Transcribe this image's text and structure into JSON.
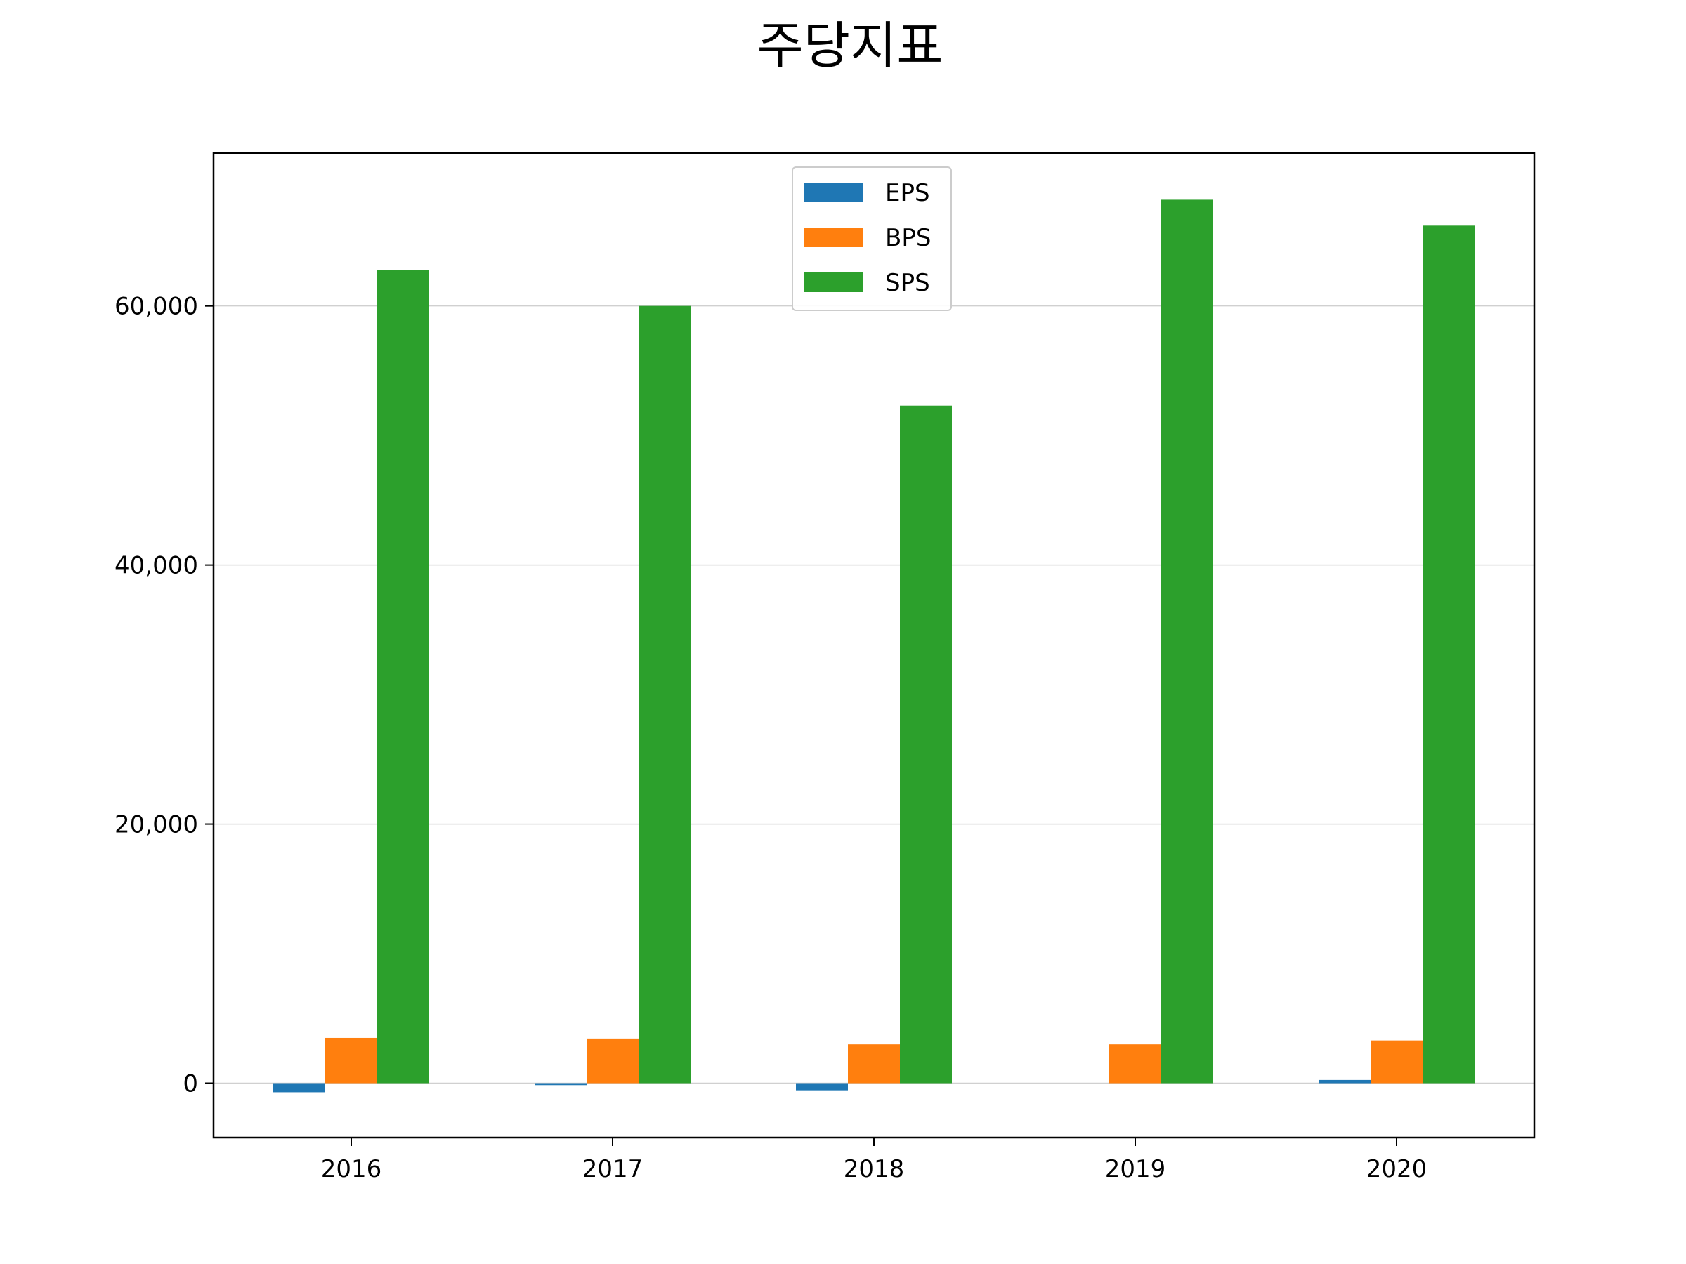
{
  "chart_data": {
    "type": "bar",
    "title": "주당지표",
    "xlabel": "",
    "ylabel": "",
    "categories": [
      "2016",
      "2017",
      "2018",
      "2019",
      "2020"
    ],
    "series": [
      {
        "name": "EPS",
        "color": "#1f77b4",
        "values": [
          -700,
          -150,
          -550,
          0,
          250
        ]
      },
      {
        "name": "BPS",
        "color": "#ff7f0e",
        "values": [
          3500,
          3450,
          3000,
          3000,
          3300
        ]
      },
      {
        "name": "SPS",
        "color": "#2ca02c",
        "values": [
          62800,
          60000,
          52300,
          68200,
          66200
        ]
      }
    ],
    "ylim": [
      -4200,
      71800
    ],
    "yticks": [
      0,
      20000,
      40000,
      60000
    ],
    "ytick_labels": [
      "0",
      "20,000",
      "40,000",
      "60,000"
    ],
    "grid": "horizontal",
    "legend_position": "top-center"
  }
}
